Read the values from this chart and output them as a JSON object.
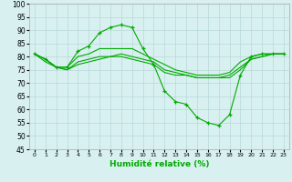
{
  "title": "",
  "xlabel": "Humidité relative (%)",
  "background_color": "#d8f0f0",
  "grid_color": "#b8d8d8",
  "line_color": "#00aa00",
  "xlim": [
    -0.5,
    23.5
  ],
  "ylim": [
    45,
    100
  ],
  "yticks": [
    45,
    50,
    55,
    60,
    65,
    70,
    75,
    80,
    85,
    90,
    95,
    100
  ],
  "xticks": [
    0,
    1,
    2,
    3,
    4,
    5,
    6,
    7,
    8,
    9,
    10,
    11,
    12,
    13,
    14,
    15,
    16,
    17,
    18,
    19,
    20,
    21,
    22,
    23
  ],
  "series": [
    {
      "x": [
        0,
        1,
        2,
        3,
        4,
        5,
        6,
        7,
        8,
        9,
        10,
        11,
        12,
        13,
        14,
        15,
        16,
        17,
        18,
        19,
        20,
        21,
        22,
        23
      ],
      "y": [
        81,
        79,
        76,
        76,
        82,
        84,
        89,
        91,
        92,
        91,
        83,
        77,
        67,
        63,
        62,
        57,
        55,
        54,
        58,
        73,
        80,
        81,
        81,
        81
      ],
      "marker": "+"
    },
    {
      "x": [
        0,
        1,
        2,
        3,
        4,
        5,
        6,
        7,
        8,
        9,
        10,
        11,
        12,
        13,
        14,
        15,
        16,
        17,
        18,
        19,
        20,
        21,
        22,
        23
      ],
      "y": [
        81,
        79,
        76,
        76,
        80,
        81,
        83,
        83,
        83,
        83,
        81,
        79,
        77,
        75,
        74,
        73,
        73,
        73,
        74,
        78,
        80,
        81,
        81,
        81
      ],
      "marker": null
    },
    {
      "x": [
        0,
        1,
        2,
        3,
        4,
        5,
        6,
        7,
        8,
        9,
        10,
        11,
        12,
        13,
        14,
        15,
        16,
        17,
        18,
        19,
        20,
        21,
        22,
        23
      ],
      "y": [
        81,
        79,
        76,
        75,
        78,
        79,
        80,
        80,
        81,
        80,
        79,
        78,
        75,
        74,
        73,
        72,
        72,
        72,
        73,
        76,
        79,
        80,
        81,
        81
      ],
      "marker": null
    },
    {
      "x": [
        0,
        1,
        2,
        3,
        4,
        5,
        6,
        7,
        8,
        9,
        10,
        11,
        12,
        13,
        14,
        15,
        16,
        17,
        18,
        19,
        20,
        21,
        22,
        23
      ],
      "y": [
        81,
        78,
        76,
        75,
        77,
        78,
        79,
        80,
        80,
        79,
        78,
        77,
        74,
        73,
        73,
        72,
        72,
        72,
        72,
        75,
        79,
        80,
        81,
        81
      ],
      "marker": null
    }
  ]
}
